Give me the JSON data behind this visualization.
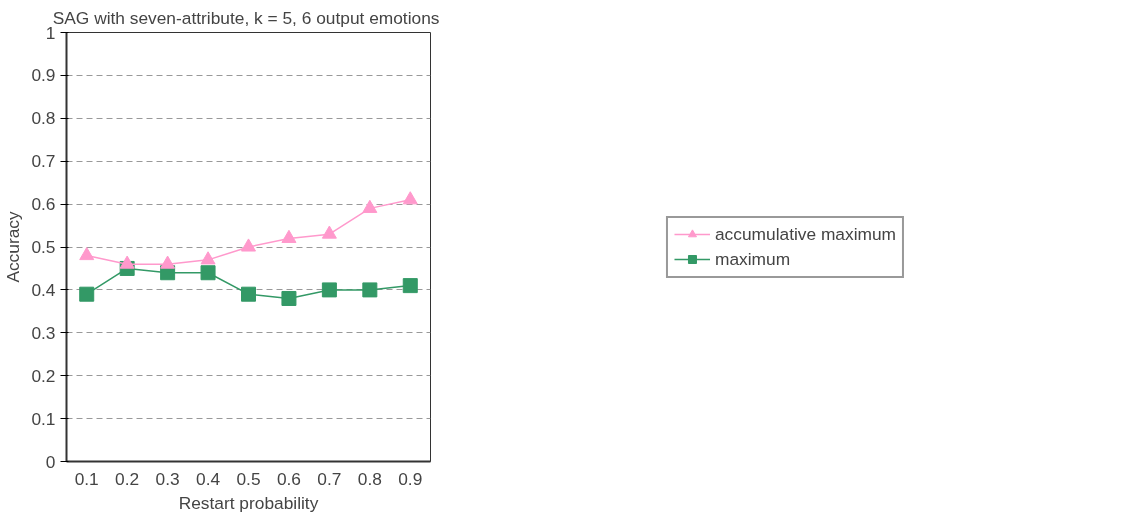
{
  "chart_data": {
    "type": "line",
    "title": "SAG with seven-attribute, k = 5,  6 output emotions",
    "xlabel": "Restart probability",
    "ylabel": "Accuracy",
    "categories": [
      "0.1",
      "0.2",
      "0.3",
      "0.4",
      "0.5",
      "0.6",
      "0.7",
      "0.8",
      "0.9"
    ],
    "series": [
      {
        "name": "accumulative maximum",
        "color": "#ff99cc",
        "marker": "triangle",
        "values": [
          0.48,
          0.46,
          0.46,
          0.47,
          0.5,
          0.52,
          0.53,
          0.59,
          0.61
        ]
      },
      {
        "name": "maximum",
        "color": "#339966",
        "marker": "square",
        "values": [
          0.39,
          0.45,
          0.44,
          0.44,
          0.39,
          0.38,
          0.4,
          0.4,
          0.41
        ]
      }
    ],
    "ylim": [
      0,
      1
    ],
    "yticks": [
      0,
      0.1,
      0.2,
      0.3,
      0.4,
      0.5,
      0.6,
      0.7,
      0.8,
      0.9,
      1
    ],
    "grid": "y",
    "legend": "right",
    "line_style": "solid"
  }
}
